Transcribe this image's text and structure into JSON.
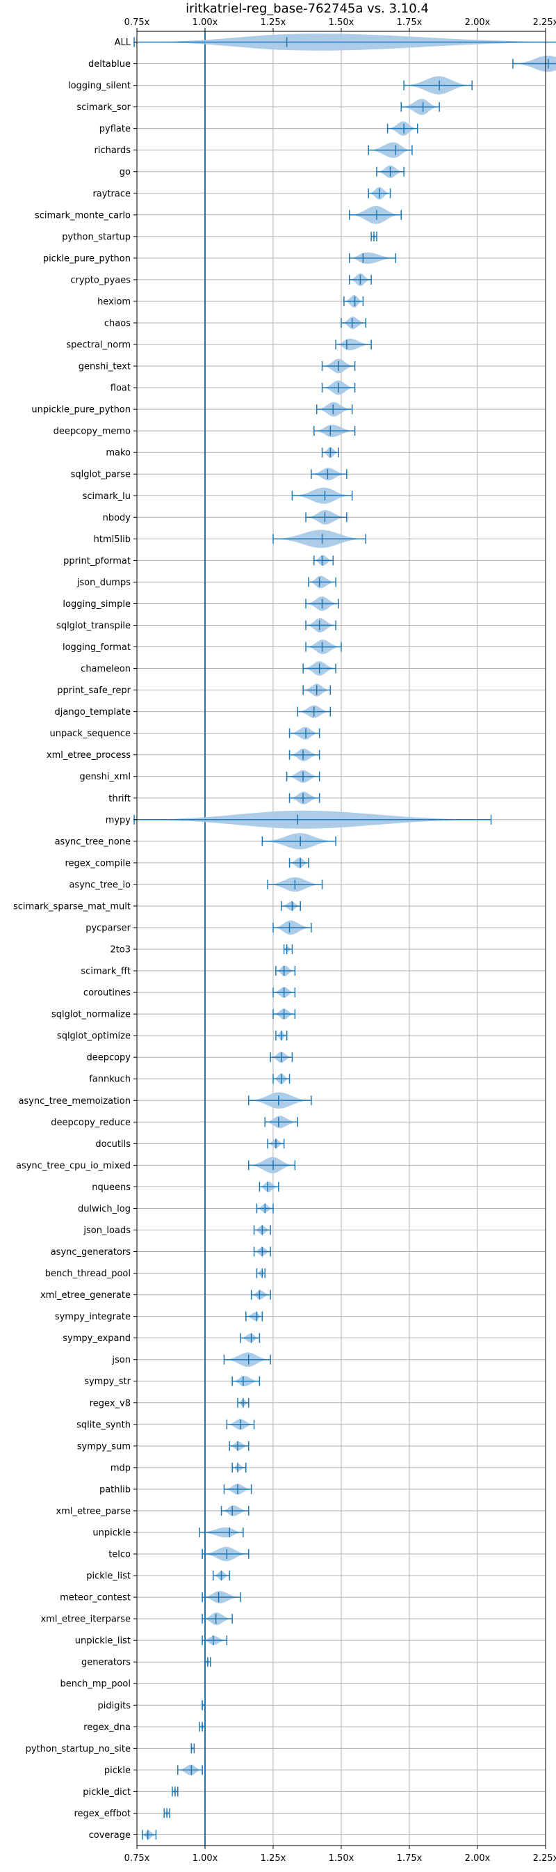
{
  "chart_data": {
    "type": "violin",
    "title": "iritkatriel-reg_base-762745a vs. 3.10.4",
    "xlabel": "",
    "ylabel": "",
    "xlim": [
      0.75,
      2.25
    ],
    "x_ticks": [
      "0.75x",
      "1.00x",
      "1.25x",
      "1.50x",
      "1.75x",
      "2.00x",
      "2.25x"
    ],
    "x_tick_values": [
      0.75,
      1.0,
      1.25,
      1.5,
      1.75,
      2.0,
      2.25
    ],
    "baseline": 1.0,
    "grid": true,
    "x_ticks_top_and_bottom": true,
    "colors": {
      "violin_fill": "#a9c9e6",
      "line": "#1f77b4",
      "grid": "#b0b0b0",
      "baseline": "#1f77b4"
    },
    "categories": [
      "ALL",
      "deltablue",
      "logging_silent",
      "scimark_sor",
      "pyflate",
      "richards",
      "go",
      "raytrace",
      "scimark_monte_carlo",
      "python_startup",
      "pickle_pure_python",
      "crypto_pyaes",
      "hexiom",
      "chaos",
      "spectral_norm",
      "genshi_text",
      "float",
      "unpickle_pure_python",
      "deepcopy_memo",
      "mako",
      "sqlglot_parse",
      "scimark_lu",
      "nbody",
      "html5lib",
      "pprint_pformat",
      "json_dumps",
      "logging_simple",
      "sqlglot_transpile",
      "logging_format",
      "chameleon",
      "pprint_safe_repr",
      "django_template",
      "unpack_sequence",
      "xml_etree_process",
      "genshi_xml",
      "thrift",
      "mypy",
      "async_tree_none",
      "regex_compile",
      "async_tree_io",
      "scimark_sparse_mat_mult",
      "pycparser",
      "2to3",
      "scimark_fft",
      "coroutines",
      "sqlglot_normalize",
      "sqlglot_optimize",
      "deepcopy",
      "fannkuch",
      "async_tree_memoization",
      "deepcopy_reduce",
      "docutils",
      "async_tree_cpu_io_mixed",
      "nqueens",
      "dulwich_log",
      "json_loads",
      "async_generators",
      "bench_thread_pool",
      "xml_etree_generate",
      "sympy_integrate",
      "sympy_expand",
      "json",
      "sympy_str",
      "regex_v8",
      "sqlite_synth",
      "sympy_sum",
      "mdp",
      "pathlib",
      "xml_etree_parse",
      "unpickle",
      "telco",
      "pickle_list",
      "meteor_contest",
      "xml_etree_iterparse",
      "unpickle_list",
      "generators",
      "bench_mp_pool",
      "pidigits",
      "regex_dna",
      "python_startup_no_site",
      "pickle",
      "pickle_dict",
      "regex_effbot",
      "coverage"
    ],
    "series": [
      {
        "median": 1.3,
        "min": 0.74,
        "max": 2.38,
        "width": 1.0
      },
      {
        "median": 2.26,
        "min": 2.13,
        "max": 2.38,
        "width": 0.9
      },
      {
        "median": 1.86,
        "min": 1.73,
        "max": 1.98,
        "width": 1.0
      },
      {
        "median": 1.8,
        "min": 1.72,
        "max": 1.86,
        "width": 0.9
      },
      {
        "median": 1.73,
        "min": 1.67,
        "max": 1.78,
        "width": 0.8
      },
      {
        "median": 1.7,
        "min": 1.6,
        "max": 1.76,
        "width": 0.9
      },
      {
        "median": 1.68,
        "min": 1.63,
        "max": 1.73,
        "width": 0.7
      },
      {
        "median": 1.64,
        "min": 1.6,
        "max": 1.68,
        "width": 0.7
      },
      {
        "median": 1.63,
        "min": 1.53,
        "max": 1.72,
        "width": 1.0
      },
      {
        "median": 1.62,
        "min": 1.61,
        "max": 1.63,
        "width": 0.25
      },
      {
        "median": 1.58,
        "min": 1.53,
        "max": 1.7,
        "width": 0.7
      },
      {
        "median": 1.57,
        "min": 1.53,
        "max": 1.61,
        "width": 0.7
      },
      {
        "median": 1.55,
        "min": 1.51,
        "max": 1.58,
        "width": 0.7
      },
      {
        "median": 1.54,
        "min": 1.5,
        "max": 1.59,
        "width": 0.7
      },
      {
        "median": 1.52,
        "min": 1.48,
        "max": 1.61,
        "width": 0.7
      },
      {
        "median": 1.49,
        "min": 1.43,
        "max": 1.55,
        "width": 0.8
      },
      {
        "median": 1.49,
        "min": 1.43,
        "max": 1.55,
        "width": 0.8
      },
      {
        "median": 1.47,
        "min": 1.41,
        "max": 1.54,
        "width": 0.8
      },
      {
        "median": 1.46,
        "min": 1.4,
        "max": 1.55,
        "width": 0.7
      },
      {
        "median": 1.46,
        "min": 1.43,
        "max": 1.49,
        "width": 0.6
      },
      {
        "median": 1.45,
        "min": 1.39,
        "max": 1.52,
        "width": 0.7
      },
      {
        "median": 1.44,
        "min": 1.32,
        "max": 1.54,
        "width": 0.9
      },
      {
        "median": 1.44,
        "min": 1.37,
        "max": 1.52,
        "width": 0.8
      },
      {
        "median": 1.43,
        "min": 1.25,
        "max": 1.59,
        "width": 1.0
      },
      {
        "median": 1.43,
        "min": 1.4,
        "max": 1.47,
        "width": 0.6
      },
      {
        "median": 1.42,
        "min": 1.38,
        "max": 1.48,
        "width": 0.7
      },
      {
        "median": 1.43,
        "min": 1.37,
        "max": 1.49,
        "width": 0.8
      },
      {
        "median": 1.42,
        "min": 1.37,
        "max": 1.48,
        "width": 0.8
      },
      {
        "median": 1.43,
        "min": 1.37,
        "max": 1.5,
        "width": 0.8
      },
      {
        "median": 1.42,
        "min": 1.36,
        "max": 1.48,
        "width": 0.8
      },
      {
        "median": 1.41,
        "min": 1.36,
        "max": 1.46,
        "width": 0.7
      },
      {
        "median": 1.4,
        "min": 1.34,
        "max": 1.46,
        "width": 0.7
      },
      {
        "median": 1.37,
        "min": 1.31,
        "max": 1.42,
        "width": 0.7
      },
      {
        "median": 1.36,
        "min": 1.31,
        "max": 1.42,
        "width": 0.7
      },
      {
        "median": 1.36,
        "min": 1.3,
        "max": 1.42,
        "width": 0.7
      },
      {
        "median": 1.36,
        "min": 1.31,
        "max": 1.42,
        "width": 0.7
      },
      {
        "median": 1.34,
        "min": 0.74,
        "max": 2.05,
        "width": 1.0
      },
      {
        "median": 1.35,
        "min": 1.21,
        "max": 1.48,
        "width": 0.9
      },
      {
        "median": 1.35,
        "min": 1.31,
        "max": 1.38,
        "width": 0.6
      },
      {
        "median": 1.33,
        "min": 1.23,
        "max": 1.43,
        "width": 0.8
      },
      {
        "median": 1.32,
        "min": 1.28,
        "max": 1.35,
        "width": 0.5
      },
      {
        "median": 1.31,
        "min": 1.25,
        "max": 1.39,
        "width": 0.8
      },
      {
        "median": 1.3,
        "min": 1.29,
        "max": 1.32,
        "width": 0.35
      },
      {
        "median": 1.29,
        "min": 1.26,
        "max": 1.33,
        "width": 0.6
      },
      {
        "median": 1.29,
        "min": 1.25,
        "max": 1.33,
        "width": 0.6
      },
      {
        "median": 1.29,
        "min": 1.25,
        "max": 1.33,
        "width": 0.6
      },
      {
        "median": 1.28,
        "min": 1.26,
        "max": 1.3,
        "width": 0.5
      },
      {
        "median": 1.28,
        "min": 1.24,
        "max": 1.32,
        "width": 0.6
      },
      {
        "median": 1.28,
        "min": 1.25,
        "max": 1.31,
        "width": 0.6
      },
      {
        "median": 1.27,
        "min": 1.16,
        "max": 1.39,
        "width": 0.9
      },
      {
        "median": 1.27,
        "min": 1.22,
        "max": 1.34,
        "width": 0.7
      },
      {
        "median": 1.26,
        "min": 1.23,
        "max": 1.29,
        "width": 0.5
      },
      {
        "median": 1.25,
        "min": 1.16,
        "max": 1.33,
        "width": 0.9
      },
      {
        "median": 1.23,
        "min": 1.2,
        "max": 1.27,
        "width": 0.6
      },
      {
        "median": 1.22,
        "min": 1.19,
        "max": 1.25,
        "width": 0.5
      },
      {
        "median": 1.21,
        "min": 1.18,
        "max": 1.24,
        "width": 0.5
      },
      {
        "median": 1.21,
        "min": 1.18,
        "max": 1.24,
        "width": 0.5
      },
      {
        "median": 1.21,
        "min": 1.19,
        "max": 1.22,
        "width": 0.4
      },
      {
        "median": 1.2,
        "min": 1.17,
        "max": 1.24,
        "width": 0.5
      },
      {
        "median": 1.19,
        "min": 1.15,
        "max": 1.21,
        "width": 0.5
      },
      {
        "median": 1.17,
        "min": 1.13,
        "max": 1.2,
        "width": 0.5
      },
      {
        "median": 1.16,
        "min": 1.07,
        "max": 1.24,
        "width": 0.8
      },
      {
        "median": 1.14,
        "min": 1.1,
        "max": 1.2,
        "width": 0.6
      },
      {
        "median": 1.14,
        "min": 1.12,
        "max": 1.16,
        "width": 0.4
      },
      {
        "median": 1.13,
        "min": 1.08,
        "max": 1.18,
        "width": 0.6
      },
      {
        "median": 1.12,
        "min": 1.09,
        "max": 1.16,
        "width": 0.5
      },
      {
        "median": 1.12,
        "min": 1.1,
        "max": 1.15,
        "width": 0.4
      },
      {
        "median": 1.12,
        "min": 1.07,
        "max": 1.17,
        "width": 0.6
      },
      {
        "median": 1.1,
        "min": 1.06,
        "max": 1.16,
        "width": 0.6
      },
      {
        "median": 1.09,
        "min": 0.98,
        "max": 1.14,
        "width": 0.6
      },
      {
        "median": 1.08,
        "min": 0.99,
        "max": 1.16,
        "width": 0.8
      },
      {
        "median": 1.06,
        "min": 1.03,
        "max": 1.09,
        "width": 0.5
      },
      {
        "median": 1.05,
        "min": 0.99,
        "max": 1.13,
        "width": 0.7
      },
      {
        "median": 1.04,
        "min": 0.99,
        "max": 1.1,
        "width": 0.7
      },
      {
        "median": 1.03,
        "min": 0.99,
        "max": 1.08,
        "width": 0.5
      },
      {
        "median": 1.01,
        "min": 1.0,
        "max": 1.02,
        "width": 0.35
      },
      {
        "median": 1.0,
        "min": 1.0,
        "max": 1.0,
        "width": 0.0
      },
      {
        "median": 0.99,
        "min": 0.99,
        "max": 1.0,
        "width": 0.3
      },
      {
        "median": 0.99,
        "min": 0.98,
        "max": 1.0,
        "width": 0.35
      },
      {
        "median": 0.95,
        "min": 0.95,
        "max": 0.96,
        "width": 0.2
      },
      {
        "median": 0.95,
        "min": 0.9,
        "max": 0.99,
        "width": 0.6
      },
      {
        "median": 0.89,
        "min": 0.88,
        "max": 0.9,
        "width": 0.3
      },
      {
        "median": 0.86,
        "min": 0.85,
        "max": 0.87,
        "width": 0.3
      },
      {
        "median": 0.79,
        "min": 0.77,
        "max": 0.82,
        "width": 0.5
      }
    ]
  }
}
